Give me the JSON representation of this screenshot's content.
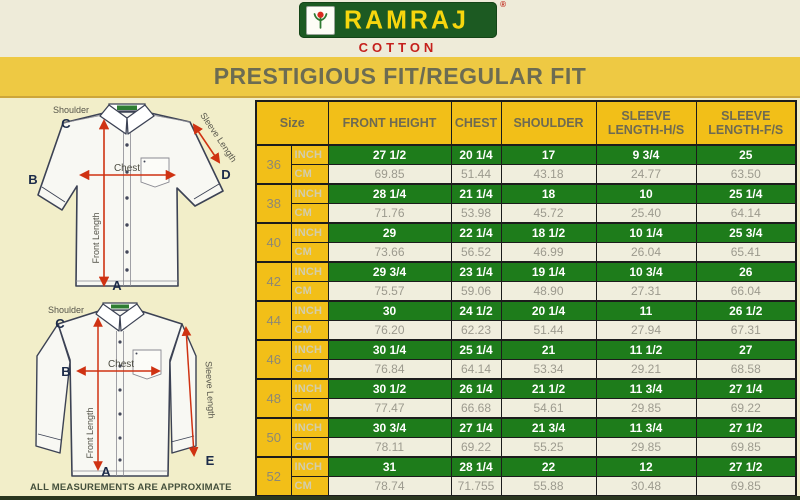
{
  "brand": {
    "name": "RAMRAJ",
    "registered_mark": "®",
    "subtitle": "COTTON",
    "logo_icon": "cotton-plant-icon"
  },
  "banner": {
    "title": "PRESTIGIOUS FIT/REGULAR FIT"
  },
  "footnote": "ALL MEASUREMENTS ARE APPROXIMATE",
  "colors": {
    "logo_green": "#1c5a22",
    "brand_yellow": "#f7d60e",
    "cotton_red": "#c5201c",
    "banner_yellow": "#eec943",
    "header_cell_yellow": "#f2bf18",
    "inch_row_green": "#1e7c1b",
    "cm_row_cream": "#f0eedd",
    "arrow_red": "#cf3212"
  },
  "diagrams": {
    "short_sleeve_shirt": {
      "shoulder_label": "Shoulder",
      "chest_label": "Chest",
      "front_length_label": "Front Length",
      "sleeve_length_label": "Sleeve Length",
      "point_a": "A",
      "point_b": "B",
      "point_c": "C",
      "point_d": "D"
    },
    "long_sleeve_shirt": {
      "shoulder_label": "Shoulder",
      "chest_label": "Chest",
      "front_length_label": "Front Length",
      "sleeve_length_label": "Sleeve Length",
      "point_a": "A",
      "point_b": "B",
      "point_c": "C",
      "point_e": "E"
    }
  },
  "chart_data": {
    "type": "table",
    "title": "PRESTIGIOUS FIT/REGULAR FIT",
    "columns": [
      "Size",
      "FRONT HEIGHT",
      "CHEST",
      "SHOULDER",
      "SLEEVE LENGTH-H/S",
      "SLEEVE LENGTH-F/S"
    ],
    "units": [
      "INCH",
      "CM"
    ],
    "sizes": [
      {
        "size": "36",
        "inch": [
          "27 1/2",
          "20 1/4",
          "17",
          "9 3/4",
          "25"
        ],
        "cm": [
          "69.85",
          "51.44",
          "43.18",
          "24.77",
          "63.50"
        ]
      },
      {
        "size": "38",
        "inch": [
          "28 1/4",
          "21 1/4",
          "18",
          "10",
          "25 1/4"
        ],
        "cm": [
          "71.76",
          "53.98",
          "45.72",
          "25.40",
          "64.14"
        ]
      },
      {
        "size": "40",
        "inch": [
          "29",
          "22 1/4",
          "18 1/2",
          "10 1/4",
          "25 3/4"
        ],
        "cm": [
          "73.66",
          "56.52",
          "46.99",
          "26.04",
          "65.41"
        ]
      },
      {
        "size": "42",
        "inch": [
          "29 3/4",
          "23 1/4",
          "19 1/4",
          "10 3/4",
          "26"
        ],
        "cm": [
          "75.57",
          "59.06",
          "48.90",
          "27.31",
          "66.04"
        ]
      },
      {
        "size": "44",
        "inch": [
          "30",
          "24 1/2",
          "20 1/4",
          "11",
          "26 1/2"
        ],
        "cm": [
          "76.20",
          "62.23",
          "51.44",
          "27.94",
          "67.31"
        ]
      },
      {
        "size": "46",
        "inch": [
          "30 1/4",
          "25 1/4",
          "21",
          "11 1/2",
          "27"
        ],
        "cm": [
          "76.84",
          "64.14",
          "53.34",
          "29.21",
          "68.58"
        ]
      },
      {
        "size": "48",
        "inch": [
          "30 1/2",
          "26 1/4",
          "21 1/2",
          "11 3/4",
          "27 1/4"
        ],
        "cm": [
          "77.47",
          "66.68",
          "54.61",
          "29.85",
          "69.22"
        ]
      },
      {
        "size": "50",
        "inch": [
          "30 3/4",
          "27 1/4",
          "21 3/4",
          "11 3/4",
          "27 1/2"
        ],
        "cm": [
          "78.11",
          "69.22",
          "55.25",
          "29.85",
          "69.85"
        ]
      },
      {
        "size": "52",
        "inch": [
          "31",
          "28 1/4",
          "22",
          "12",
          "27 1/2"
        ],
        "cm": [
          "78.74",
          "71.755",
          "55.88",
          "30.48",
          "69.85"
        ]
      }
    ]
  }
}
